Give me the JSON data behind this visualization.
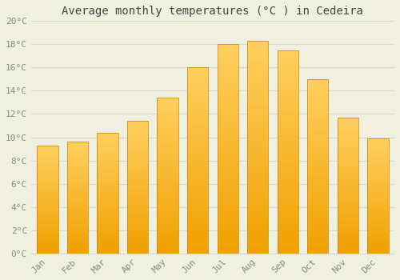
{
  "title": "Average monthly temperatures (°C ) in Cedeira",
  "months": [
    "Jan",
    "Feb",
    "Mar",
    "Apr",
    "May",
    "Jun",
    "Jul",
    "Aug",
    "Sep",
    "Oct",
    "Nov",
    "Dec"
  ],
  "values": [
    9.3,
    9.6,
    10.4,
    11.4,
    13.4,
    16.0,
    18.0,
    18.3,
    17.5,
    15.0,
    11.7,
    9.9
  ],
  "bar_color_bottom": "#F0A000",
  "bar_color_top": "#FFD060",
  "bar_edge_color": "#C88000",
  "ylim": [
    0,
    20
  ],
  "yticks": [
    0,
    2,
    4,
    6,
    8,
    10,
    12,
    14,
    16,
    18,
    20
  ],
  "ytick_labels": [
    "0°C",
    "2°C",
    "4°C",
    "6°C",
    "8°C",
    "10°C",
    "12°C",
    "14°C",
    "16°C",
    "18°C",
    "20°C"
  ],
  "background_color": "#f0f0e0",
  "grid_color": "#d8d8c8",
  "title_fontsize": 10,
  "tick_fontsize": 8,
  "tick_color": "#888888",
  "font_family": "monospace",
  "bar_width": 0.7
}
